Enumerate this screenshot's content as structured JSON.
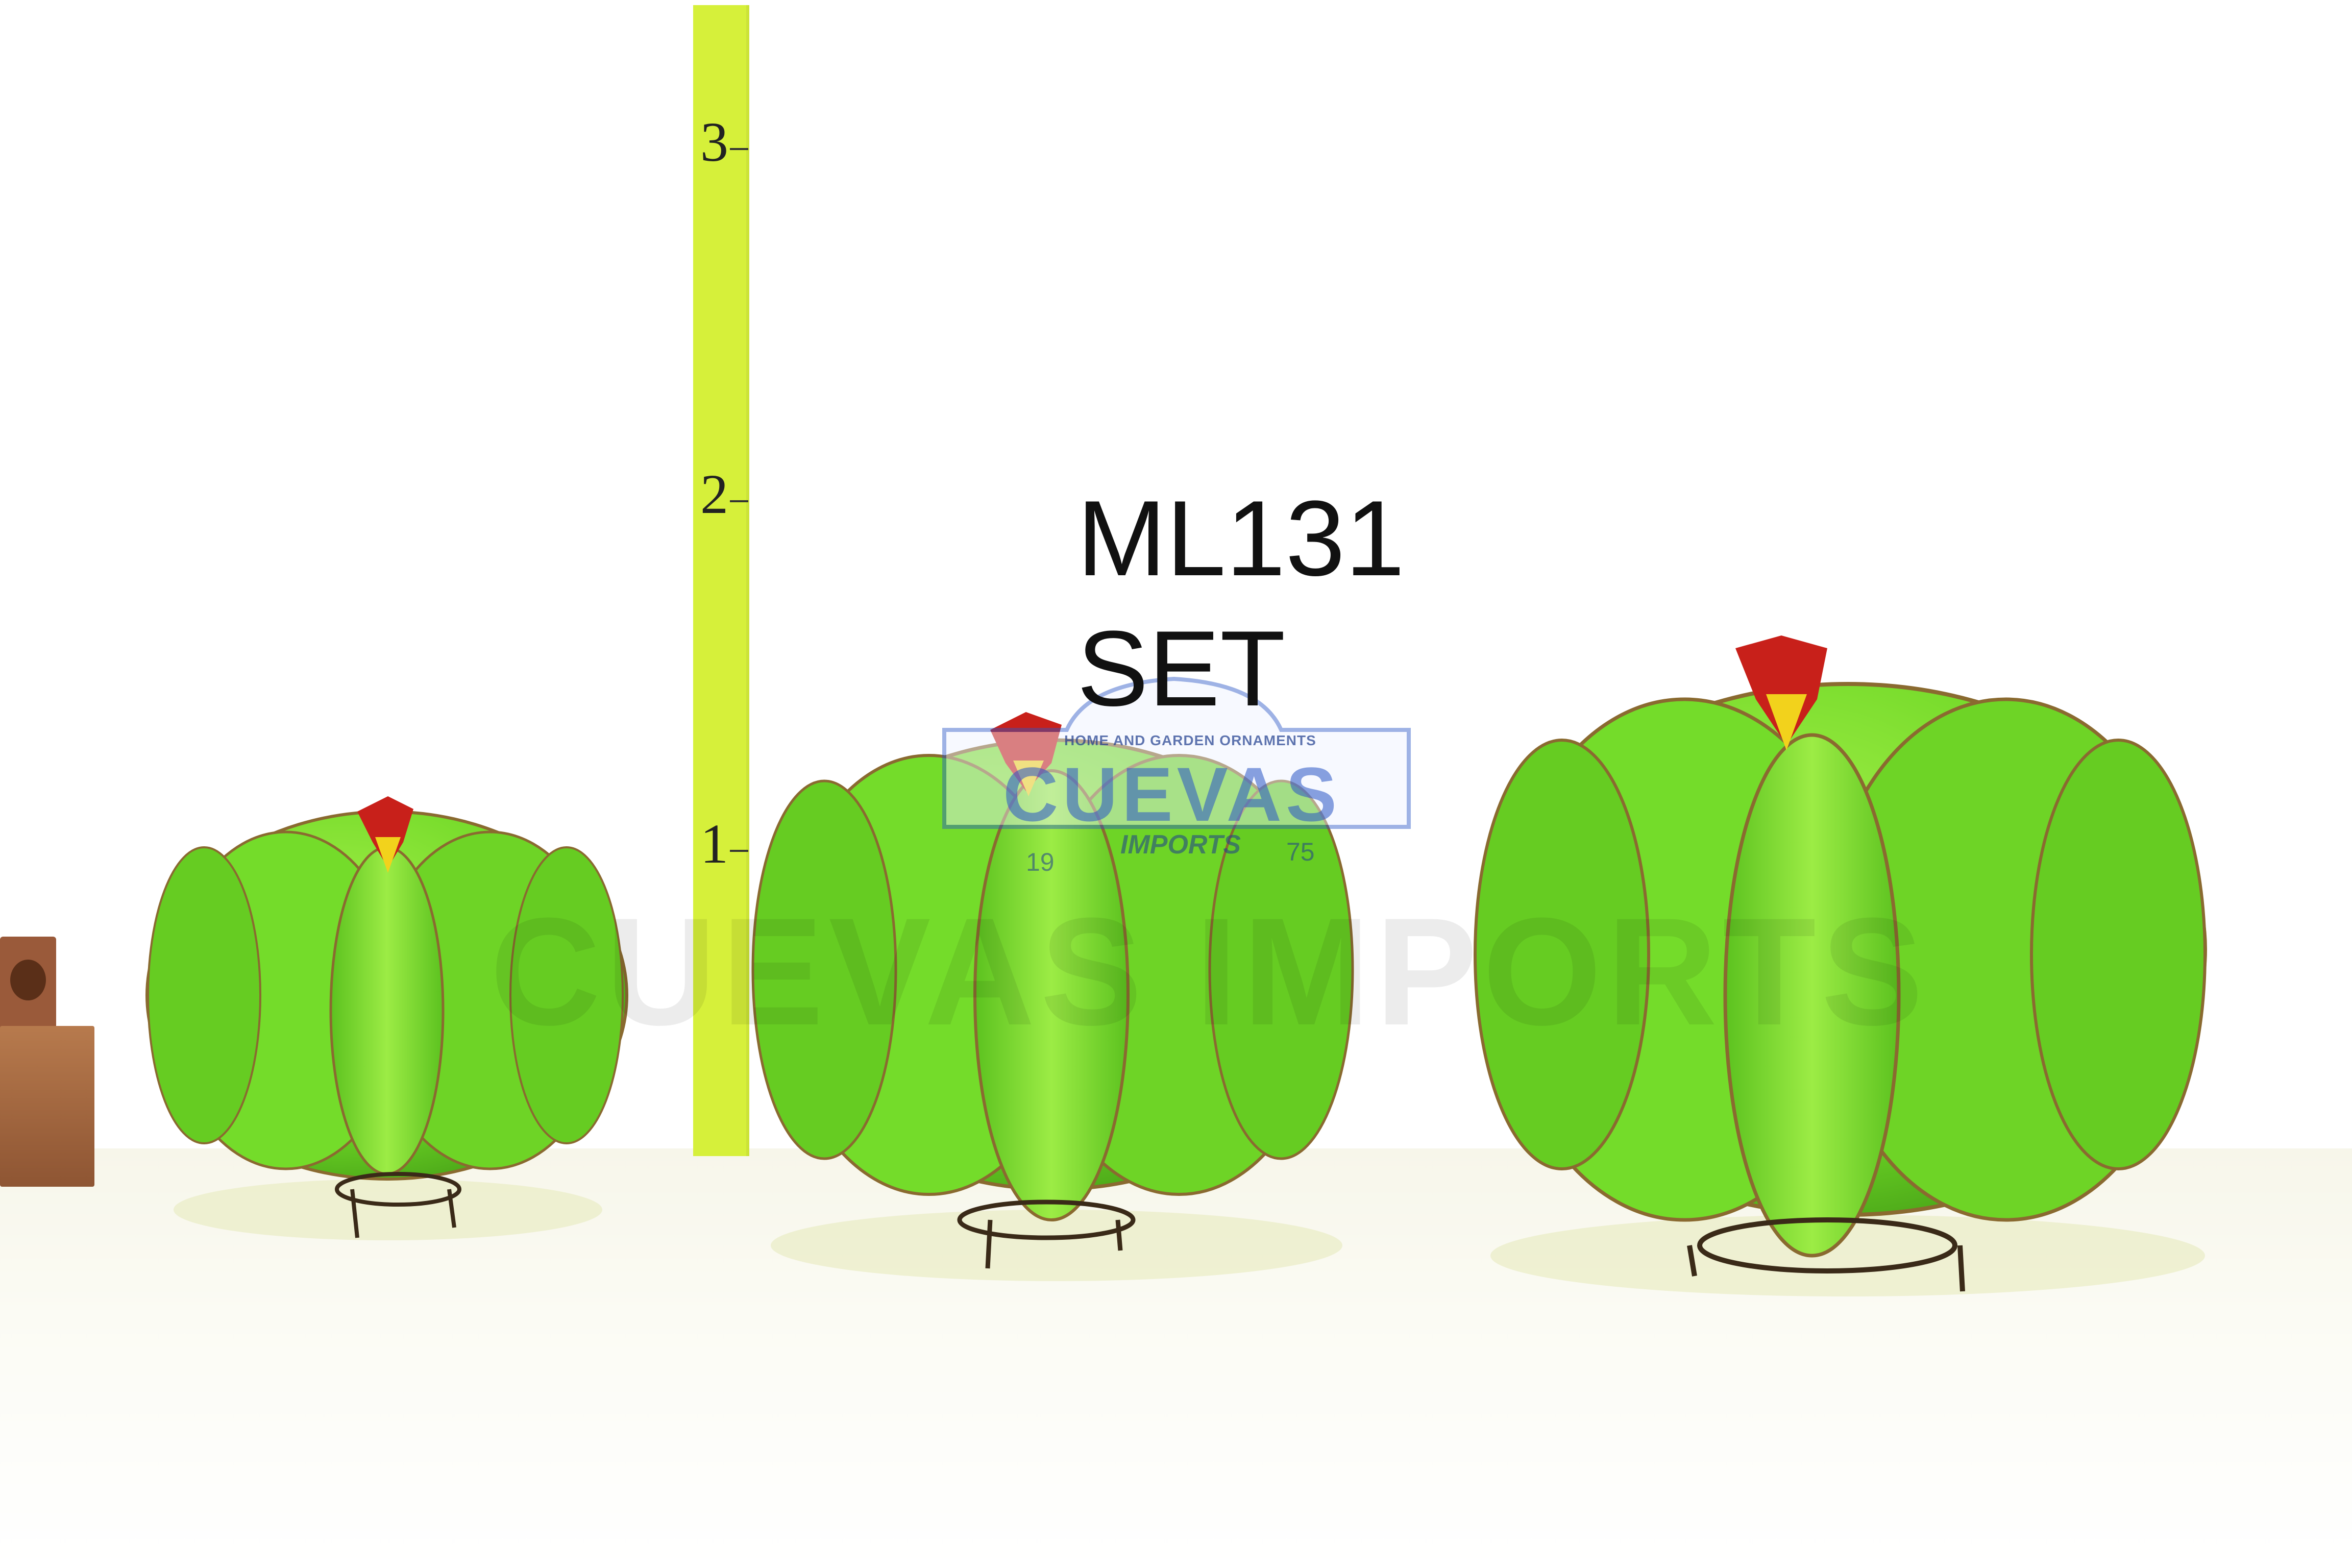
{
  "product": {
    "sku": "ML131",
    "label": "SET"
  },
  "ruler": {
    "marks": [
      "3",
      "2",
      "1"
    ],
    "color": "#d6f03a"
  },
  "logo": {
    "tagline": "HOME AND GARDEN ORNAMENTS",
    "name": "CUEVAS",
    "sub": "IMPORTS",
    "year_left": "19",
    "year_right": "75"
  },
  "watermark": "CUEVAS IMPORTS",
  "objects": [
    {
      "name": "small barrel cactus",
      "color": "#7ee02a"
    },
    {
      "name": "medium barrel cactus",
      "color": "#7ee02a"
    },
    {
      "name": "large barrel cactus",
      "color": "#7ee02a"
    }
  ],
  "flower_colors": {
    "petal": "#c8201a",
    "center": "#f2d21c"
  }
}
